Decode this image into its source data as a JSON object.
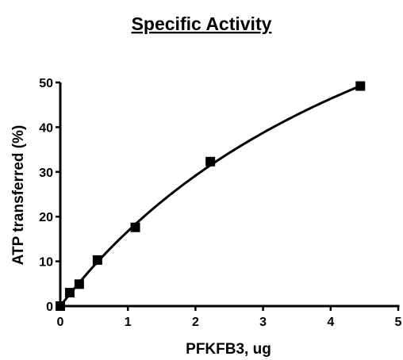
{
  "chart_data": {
    "type": "scatter",
    "title": "Specific Activity",
    "xlabel": "PFKFB3, ug",
    "ylabel": "ATP transferred (%)",
    "xlim": [
      0,
      5
    ],
    "ylim": [
      0,
      50
    ],
    "xticks": [
      "0",
      "1",
      "2",
      "3",
      "4",
      "5"
    ],
    "yticks": [
      "0",
      "10",
      "20",
      "30",
      "40",
      "50"
    ],
    "grid": false,
    "marker": "square",
    "fit_curve": true,
    "series": [
      {
        "points": [
          {
            "x": 0.0,
            "y": 0.0
          },
          {
            "x": 0.14,
            "y": 3.0
          },
          {
            "x": 0.28,
            "y": 4.9
          },
          {
            "x": 0.55,
            "y": 10.3
          },
          {
            "x": 1.11,
            "y": 17.6
          },
          {
            "x": 2.22,
            "y": 32.3
          },
          {
            "x": 4.44,
            "y": 49.2
          }
        ]
      }
    ],
    "colors": {
      "marks": "#000000",
      "background": "#ffffff"
    }
  }
}
